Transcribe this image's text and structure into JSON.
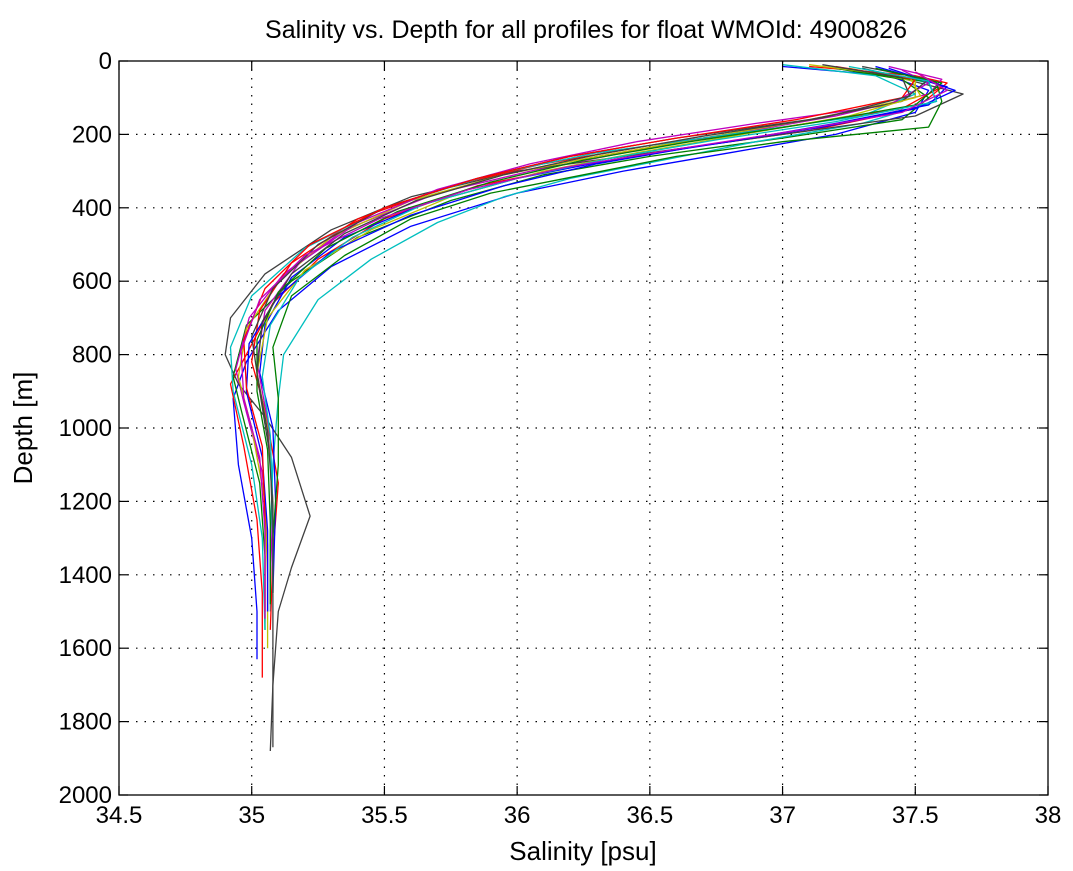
{
  "chart_data": {
    "type": "line",
    "title": "Salinity vs. Depth for all profiles for float WMOId: 4900826",
    "xlabel": "Salinity [psu]",
    "ylabel": "Depth [m]",
    "xlim": [
      34.5,
      38
    ],
    "ylim": [
      0,
      2000
    ],
    "y_reversed": true,
    "grid": true,
    "xticks": [
      "34.5",
      "35",
      "35.5",
      "36",
      "36.5",
      "37",
      "37.5",
      "38"
    ],
    "yticks": [
      "0",
      "200",
      "400",
      "600",
      "800",
      "1000",
      "1200",
      "1400",
      "1600",
      "1800",
      "2000"
    ],
    "series": [
      {
        "color": "#0000ff",
        "x": [
          37.0,
          37.4,
          37.55,
          37.5,
          37.2,
          36.8,
          36.4,
          36.0,
          35.6,
          35.3,
          35.1,
          34.98,
          34.93,
          34.95,
          35.0,
          35.02,
          35.02
        ],
        "y": [
          15,
          40,
          80,
          140,
          200,
          250,
          300,
          360,
          450,
          560,
          680,
          820,
          920,
          1100,
          1300,
          1500,
          1630
        ]
      },
      {
        "color": "#ff0000",
        "x": [
          37.1,
          37.5,
          37.62,
          37.5,
          37.1,
          36.6,
          36.2,
          35.85,
          35.5,
          35.25,
          35.08,
          34.98,
          34.92,
          34.97,
          35.02,
          35.04,
          35.04
        ],
        "y": [
          15,
          40,
          60,
          130,
          190,
          240,
          290,
          340,
          430,
          540,
          660,
          800,
          880,
          1050,
          1250,
          1450,
          1680
        ]
      },
      {
        "color": "#008000",
        "x": [
          37.2,
          37.45,
          37.55,
          37.45,
          37.0,
          36.5,
          36.1,
          35.75,
          35.4,
          35.15,
          34.98,
          34.93,
          34.96,
          35.03,
          35.05,
          35.05
        ],
        "y": [
          20,
          50,
          100,
          160,
          210,
          260,
          310,
          380,
          480,
          600,
          720,
          860,
          950,
          1150,
          1350,
          1550
        ]
      },
      {
        "color": "#00bfbf",
        "x": [
          37.3,
          37.55,
          37.58,
          37.3,
          36.9,
          36.55,
          36.2,
          35.95,
          35.7,
          35.45,
          35.25,
          35.12,
          35.1,
          35.08,
          35.07,
          35.07
        ],
        "y": [
          20,
          60,
          110,
          170,
          220,
          270,
          320,
          370,
          440,
          540,
          650,
          800,
          920,
          1100,
          1300,
          1500
        ]
      },
      {
        "color": "#bf00bf",
        "x": [
          37.4,
          37.6,
          37.55,
          37.2,
          36.8,
          36.4,
          36.05,
          35.7,
          35.35,
          35.12,
          34.99,
          34.94,
          34.97,
          35.04,
          35.06,
          35.06
        ],
        "y": [
          15,
          50,
          90,
          150,
          200,
          250,
          300,
          360,
          460,
          580,
          700,
          840,
          930,
          1120,
          1320,
          1500
        ]
      },
      {
        "color": "#404040",
        "x": [
          37.3,
          37.68,
          37.5,
          37.0,
          36.5,
          36.0,
          35.6,
          35.3,
          35.05,
          34.92,
          34.9,
          34.95,
          35.05,
          35.15,
          35.22,
          35.15,
          35.1,
          35.08,
          35.07
        ],
        "y": [
          20,
          90,
          150,
          200,
          250,
          300,
          370,
          460,
          580,
          700,
          800,
          880,
          970,
          1080,
          1240,
          1380,
          1500,
          1700,
          1880
        ]
      },
      {
        "color": "#bfbf00",
        "x": [
          37.25,
          37.5,
          37.5,
          37.1,
          36.7,
          36.3,
          35.95,
          35.6,
          35.3,
          35.1,
          34.98,
          34.95,
          35.0,
          35.05,
          35.06,
          35.06
        ],
        "y": [
          20,
          55,
          100,
          160,
          210,
          260,
          310,
          380,
          480,
          600,
          730,
          860,
          1000,
          1200,
          1400,
          1600
        ]
      },
      {
        "color": "#ff0000",
        "x": [
          37.5,
          37.6,
          37.45,
          37.0,
          36.5,
          36.1,
          35.75,
          35.4,
          35.15,
          35.03,
          35.0,
          35.05,
          35.1,
          35.08,
          35.07
        ],
        "y": [
          30,
          70,
          130,
          180,
          230,
          280,
          340,
          430,
          550,
          680,
          820,
          950,
          1150,
          1350,
          1550
        ]
      },
      {
        "color": "#0000ff",
        "x": [
          37.35,
          37.62,
          37.55,
          37.2,
          36.8,
          36.35,
          36.0,
          35.65,
          35.35,
          35.15,
          35.05,
          35.03,
          35.08,
          35.09,
          35.08
        ],
        "y": [
          15,
          70,
          120,
          170,
          220,
          270,
          320,
          390,
          480,
          590,
          720,
          850,
          1000,
          1200,
          1450
        ]
      },
      {
        "color": "#008000",
        "x": [
          37.2,
          37.58,
          37.6,
          37.55,
          37.0,
          36.6,
          36.25,
          35.9,
          35.6,
          35.35,
          35.15,
          35.08,
          35.1,
          35.1,
          35.08
        ],
        "y": [
          20,
          60,
          110,
          180,
          220,
          260,
          310,
          360,
          430,
          530,
          640,
          780,
          920,
          1100,
          1300
        ]
      },
      {
        "color": "#00bfbf",
        "x": [
          37.0,
          37.35,
          37.5,
          37.3,
          36.8,
          36.3,
          35.9,
          35.5,
          35.2,
          35.0,
          34.92,
          34.93,
          35.0,
          35.04,
          35.05
        ],
        "y": [
          10,
          40,
          90,
          150,
          200,
          250,
          310,
          400,
          510,
          640,
          780,
          900,
          1100,
          1300,
          1550
        ]
      },
      {
        "color": "#bf00bf",
        "x": [
          37.45,
          37.55,
          37.4,
          36.9,
          36.45,
          36.05,
          35.7,
          35.4,
          35.18,
          35.05,
          35.02,
          35.06,
          35.08,
          35.07
        ],
        "y": [
          25,
          60,
          120,
          170,
          220,
          280,
          350,
          440,
          550,
          680,
          820,
          980,
          1200,
          1420
        ]
      },
      {
        "color": "#404040",
        "x": [
          37.3,
          37.55,
          37.45,
          37.1,
          36.6,
          36.2,
          35.85,
          35.5,
          35.25,
          35.08,
          35.0,
          35.03,
          35.07,
          35.08,
          35.08
        ],
        "y": [
          15,
          50,
          110,
          160,
          210,
          260,
          320,
          400,
          500,
          620,
          750,
          900,
          1080,
          1300,
          1870
        ]
      },
      {
        "color": "#bfbf00",
        "x": [
          37.1,
          37.48,
          37.52,
          37.25,
          36.85,
          36.45,
          36.1,
          35.75,
          35.45,
          35.2,
          35.06,
          35.02,
          35.06,
          35.08,
          35.08
        ],
        "y": [
          10,
          45,
          95,
          150,
          200,
          250,
          300,
          370,
          460,
          570,
          700,
          850,
          1000,
          1200,
          1450
        ]
      },
      {
        "color": "#0000ff",
        "x": [
          37.4,
          37.65,
          37.5,
          37.15,
          36.7,
          36.3,
          35.95,
          35.6,
          35.3,
          35.1,
          34.99,
          34.98,
          35.04,
          35.06,
          35.06
        ],
        "y": [
          20,
          80,
          130,
          180,
          230,
          280,
          340,
          420,
          520,
          640,
          770,
          900,
          1080,
          1280,
          1500
        ]
      },
      {
        "color": "#ff0000",
        "x": [
          37.2,
          37.5,
          37.45,
          37.05,
          36.6,
          36.2,
          35.85,
          35.5,
          35.22,
          35.05,
          34.97,
          34.98,
          35.04,
          35.05,
          35.05
        ],
        "y": [
          15,
          50,
          100,
          160,
          210,
          260,
          320,
          400,
          500,
          620,
          760,
          890,
          1050,
          1250,
          1500
        ]
      },
      {
        "color": "#008000",
        "x": [
          37.35,
          37.6,
          37.5,
          37.1,
          36.65,
          36.25,
          35.9,
          35.55,
          35.28,
          35.1,
          35.02,
          35.02,
          35.06,
          35.07,
          35.07
        ],
        "y": [
          20,
          60,
          120,
          170,
          220,
          270,
          330,
          410,
          510,
          630,
          760,
          900,
          1060,
          1260,
          1480
        ]
      },
      {
        "color": "#00bfbf",
        "x": [
          37.25,
          37.55,
          37.58,
          37.2,
          36.75,
          36.35,
          36.0,
          35.65,
          35.38,
          35.18,
          35.07,
          35.04,
          35.07,
          35.08,
          35.08
        ],
        "y": [
          15,
          55,
          110,
          165,
          215,
          265,
          320,
          390,
          480,
          590,
          720,
          860,
          1020,
          1220,
          1450
        ]
      },
      {
        "color": "#bf00bf",
        "x": [
          37.5,
          37.62,
          37.45,
          37.05,
          36.6,
          36.18,
          35.82,
          35.48,
          35.2,
          35.03,
          34.96,
          34.97,
          35.03,
          35.05,
          35.05
        ],
        "y": [
          30,
          80,
          140,
          190,
          240,
          290,
          350,
          430,
          530,
          650,
          790,
          920,
          1080,
          1280,
          1520
        ]
      },
      {
        "color": "#404040",
        "x": [
          37.15,
          37.45,
          37.48,
          37.15,
          36.7,
          36.3,
          35.95,
          35.62,
          35.35,
          35.15,
          35.04,
          35.02,
          35.06,
          35.08,
          35.08
        ],
        "y": [
          10,
          45,
          95,
          155,
          205,
          255,
          310,
          380,
          470,
          580,
          710,
          850,
          1010,
          1210,
          1450
        ]
      }
    ]
  }
}
